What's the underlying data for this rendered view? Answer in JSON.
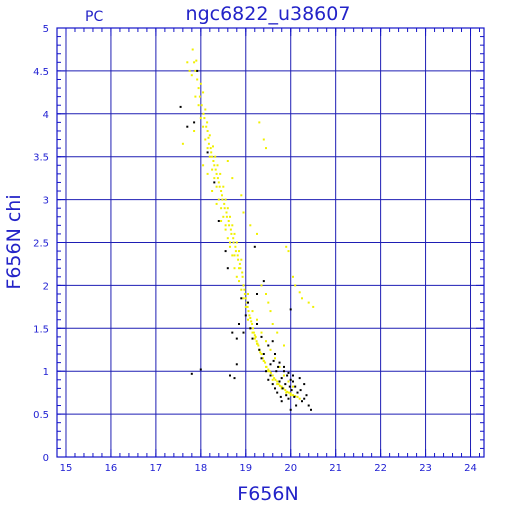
{
  "panel_label": "PC",
  "chart_data": {
    "type": "scatter",
    "title": "ngc6822_u38607",
    "xlabel": "F656N",
    "ylabel": "F656N  chi",
    "xlim": [
      14.8,
      24.3
    ],
    "ylim": [
      0,
      5
    ],
    "grid": true,
    "xticks": [
      15,
      16,
      17,
      18,
      19,
      20,
      21,
      22,
      23,
      24
    ],
    "yticks": [
      0,
      0.5,
      1,
      1.5,
      2,
      2.5,
      3,
      3.5,
      4,
      4.5,
      5
    ],
    "ytick_labels": [
      "0",
      "0.5",
      "1",
      "1.5",
      "2",
      "2.5",
      "3",
      "3.5",
      "4",
      "4.5",
      "5"
    ],
    "colors": {
      "axis": "#1414c8",
      "grid": "#1e1eb4",
      "yellow": "#f0f000",
      "black": "#000000"
    },
    "series": [
      {
        "color": "yellow",
        "x": [
          17.82,
          17.85,
          17.88,
          17.9,
          17.92,
          17.95,
          17.98,
          18.0,
          18.02,
          18.05,
          18.06,
          18.08,
          18.1,
          18.12,
          18.14,
          18.15,
          18.17,
          18.18,
          18.2,
          18.22,
          18.23,
          18.25,
          18.27,
          18.28,
          18.3,
          18.32,
          18.33,
          18.35,
          18.37,
          18.38,
          18.4,
          18.42,
          18.43,
          18.45,
          18.47,
          18.48,
          18.5,
          18.52,
          18.53,
          18.55,
          18.57,
          18.58,
          18.6,
          18.62,
          18.63,
          18.65,
          18.67,
          18.68,
          18.7,
          18.72,
          18.73,
          18.75,
          18.77,
          18.78,
          18.8,
          18.82,
          18.83,
          18.85,
          18.87,
          18.88,
          18.9,
          18.92,
          18.93,
          18.95,
          18.97,
          18.98,
          19.0,
          19.02,
          19.04,
          19.06,
          19.08,
          19.1,
          19.12,
          19.14,
          19.16,
          19.18,
          19.2,
          19.22,
          19.24,
          19.26,
          19.28,
          19.3,
          19.32,
          19.35,
          19.38,
          19.4,
          19.43,
          19.46,
          19.5,
          19.53,
          19.56,
          19.6,
          19.63,
          19.66,
          19.7,
          19.73,
          19.76,
          19.8,
          19.84,
          19.88,
          19.92,
          19.96,
          20.0,
          20.05,
          20.1,
          20.15,
          20.2,
          17.7,
          17.75,
          17.8,
          17.88,
          17.95,
          18.0,
          18.05,
          18.1,
          18.15,
          18.2,
          18.25,
          18.3,
          18.35,
          18.4,
          18.45,
          18.5,
          18.55,
          18.6,
          18.65,
          18.7,
          18.75,
          18.8,
          18.85,
          18.9,
          18.95,
          19.0,
          19.05,
          19.1,
          19.15,
          19.2,
          19.25,
          19.3,
          19.35,
          19.4,
          19.45,
          19.5,
          19.55,
          19.6,
          19.7,
          19.8,
          19.9,
          20.0,
          17.6,
          17.85,
          18.05,
          18.15,
          18.25,
          18.35,
          18.45,
          18.55,
          18.65,
          18.75,
          18.85,
          18.95,
          19.05,
          19.15,
          19.25,
          19.35,
          19.45,
          19.55,
          19.65,
          19.75,
          19.85,
          19.95,
          20.05,
          19.35,
          19.45,
          19.5,
          19.55,
          19.6,
          19.7,
          19.85,
          19.9,
          19.95,
          20.05,
          20.1,
          20.2,
          20.25,
          20.4,
          20.5,
          19.3,
          19.4,
          19.45,
          18.9,
          18.95,
          19.1,
          19.25,
          18.6,
          18.7
        ],
        "y": [
          4.75,
          4.6,
          4.5,
          4.62,
          4.4,
          4.3,
          4.2,
          4.35,
          4.1,
          4.25,
          4.0,
          3.95,
          4.05,
          3.85,
          3.9,
          3.8,
          3.72,
          3.65,
          3.75,
          3.6,
          3.55,
          3.5,
          3.62,
          3.45,
          3.4,
          3.5,
          3.35,
          3.3,
          3.4,
          3.25,
          3.2,
          3.15,
          3.3,
          3.1,
          3.05,
          3.0,
          3.15,
          2.95,
          2.9,
          3.0,
          2.85,
          2.8,
          2.9,
          2.75,
          2.7,
          2.8,
          2.65,
          2.6,
          2.7,
          2.55,
          2.5,
          2.6,
          2.45,
          2.4,
          2.5,
          2.35,
          2.3,
          2.4,
          2.25,
          2.2,
          2.3,
          2.15,
          2.1,
          2.0,
          1.95,
          1.9,
          1.85,
          1.8,
          1.75,
          1.7,
          1.65,
          1.62,
          1.58,
          1.55,
          1.5,
          1.45,
          1.42,
          1.4,
          1.35,
          1.32,
          1.3,
          1.25,
          1.22,
          1.2,
          1.15,
          1.12,
          1.1,
          1.05,
          1.02,
          1.0,
          0.98,
          0.95,
          0.92,
          0.9,
          0.88,
          0.85,
          0.83,
          0.82,
          0.8,
          0.78,
          0.76,
          0.75,
          0.74,
          0.72,
          0.71,
          0.7,
          0.68,
          4.6,
          4.5,
          4.45,
          4.2,
          4.1,
          3.95,
          3.85,
          3.7,
          3.6,
          3.5,
          3.35,
          3.25,
          3.15,
          3.0,
          2.9,
          2.8,
          2.7,
          2.55,
          2.45,
          2.35,
          2.2,
          2.1,
          2.05,
          1.95,
          1.85,
          1.75,
          1.6,
          1.5,
          1.45,
          1.38,
          1.32,
          1.25,
          1.2,
          1.12,
          1.05,
          1.0,
          0.95,
          0.9,
          0.85,
          0.8,
          0.75,
          0.72,
          3.65,
          3.8,
          3.4,
          3.3,
          3.1,
          2.95,
          2.75,
          2.65,
          2.5,
          2.35,
          2.2,
          2.0,
          1.9,
          1.7,
          1.6,
          1.45,
          1.35,
          1.25,
          1.15,
          1.05,
          0.95,
          0.88,
          0.82,
          2.0,
          1.9,
          1.8,
          1.7,
          1.55,
          1.45,
          1.3,
          2.45,
          2.4,
          2.1,
          2.0,
          1.92,
          1.85,
          1.8,
          1.75,
          3.9,
          3.7,
          3.6,
          3.05,
          2.85,
          2.7,
          2.6,
          3.45,
          3.25
        ]
      },
      {
        "color": "black",
        "x": [
          17.55,
          17.7,
          17.85,
          17.92,
          18.0,
          17.8,
          18.15,
          18.3,
          18.4,
          18.55,
          18.6,
          18.65,
          18.75,
          18.8,
          18.85,
          18.9,
          18.95,
          19.0,
          19.05,
          19.1,
          19.15,
          19.2,
          19.25,
          19.3,
          19.35,
          19.4,
          19.45,
          19.5,
          19.55,
          19.6,
          19.62,
          19.65,
          19.68,
          19.7,
          19.72,
          19.75,
          19.78,
          19.8,
          19.82,
          19.85,
          19.88,
          19.9,
          19.92,
          19.95,
          19.98,
          20.0,
          20.02,
          20.05,
          20.08,
          20.1,
          20.15,
          20.2,
          20.25,
          20.3,
          20.35,
          20.4,
          20.45,
          19.25,
          19.35,
          19.5,
          19.65,
          19.75,
          19.85,
          19.95,
          20.05,
          20.12,
          20.22,
          20.3,
          19.4,
          19.6,
          19.8,
          20.0,
          18.7,
          18.8,
          19.55,
          20.0
        ],
        "y": [
          4.08,
          3.85,
          3.9,
          4.5,
          1.02,
          0.97,
          3.55,
          3.2,
          2.75,
          2.4,
          2.2,
          0.95,
          0.92,
          1.08,
          1.55,
          1.85,
          1.45,
          1.65,
          1.8,
          1.5,
          1.38,
          2.45,
          1.9,
          1.25,
          1.15,
          1.2,
          1.0,
          0.9,
          0.95,
          0.85,
          1.12,
          0.8,
          1.0,
          0.75,
          1.05,
          0.88,
          0.7,
          0.92,
          0.8,
          1.0,
          0.85,
          0.72,
          0.95,
          0.68,
          0.82,
          0.9,
          0.78,
          0.88,
          0.7,
          0.82,
          0.75,
          0.92,
          0.65,
          0.85,
          0.72,
          0.6,
          0.55,
          1.55,
          1.4,
          1.3,
          1.2,
          1.1,
          1.05,
          0.98,
          0.95,
          0.6,
          0.78,
          0.68,
          2.05,
          1.35,
          0.65,
          0.55,
          1.45,
          1.38,
          1.08,
          1.72
        ]
      }
    ]
  }
}
